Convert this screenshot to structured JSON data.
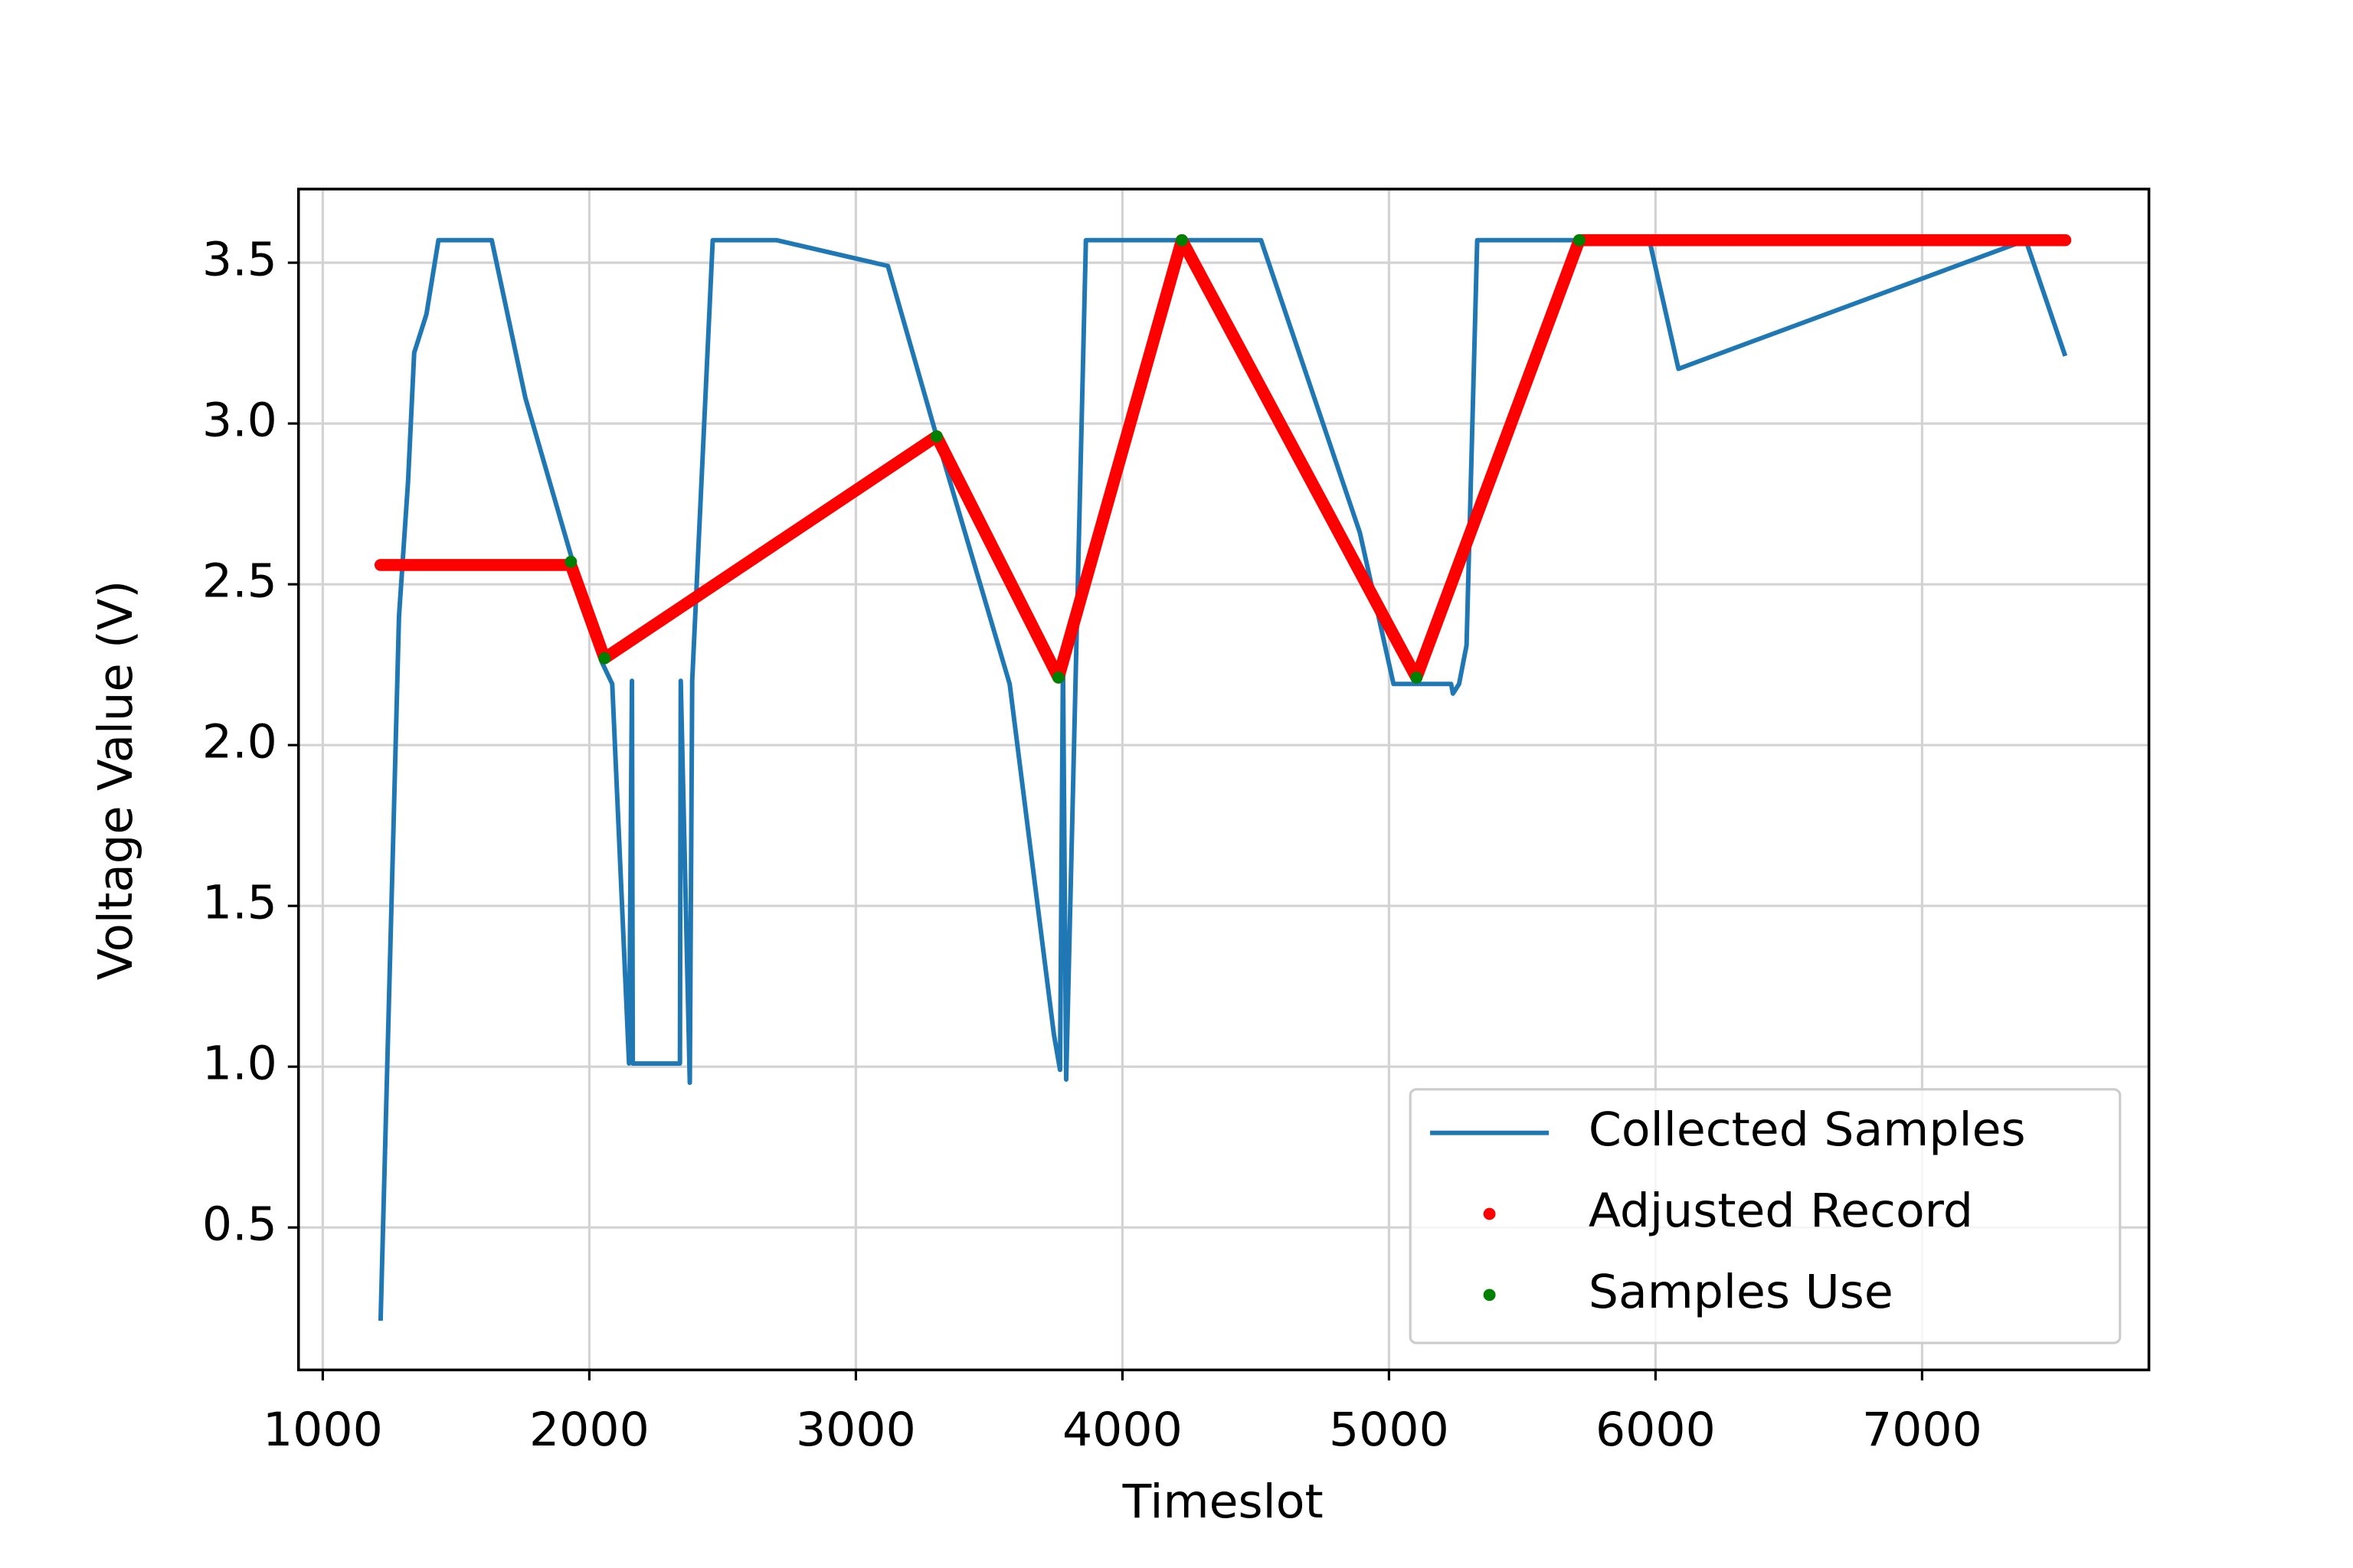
{
  "chart_data": {
    "type": "line",
    "xlabel": "Timeslot",
    "ylabel": "Voltage Value (V)",
    "xlim": [
      909,
      7851
    ],
    "ylim": [
      0.057,
      3.729
    ],
    "xticks": [
      1000,
      2000,
      3000,
      4000,
      5000,
      6000,
      7000
    ],
    "yticks": [
      0.5,
      {
        "value": 1.0,
        "label": "1.0"
      },
      1.5,
      {
        "value": 2.0,
        "label": "2.0"
      },
      2.5,
      {
        "value": 3.0,
        "label": "3.0"
      },
      3.5
    ],
    "grid": true,
    "legend": "lower right",
    "series": [
      {
        "name": "Collected Samples",
        "color": "#1f77b4",
        "mode": "line",
        "x": [
          1217,
          1286,
          1320,
          1343,
          1389,
          1434,
          1634,
          1760,
          1931,
          2046,
          2086,
          2149,
          2160,
          2163,
          2340,
          2343,
          2377,
          2386,
          2463,
          2703,
          3120,
          3303,
          3577,
          3743,
          3766,
          3777,
          3789,
          3863,
          4520,
          4891,
          5017,
          5233,
          5240,
          5263,
          5291,
          5331,
          5977,
          6086,
          7389,
          7537
        ],
        "values": [
          0.21,
          2.4,
          2.82,
          3.22,
          3.34,
          3.57,
          3.57,
          3.08,
          2.59,
          2.26,
          2.19,
          1.01,
          2.2,
          1.01,
          1.01,
          2.2,
          0.95,
          2.2,
          3.57,
          3.57,
          3.49,
          2.96,
          2.19,
          1.1,
          0.99,
          2.26,
          0.96,
          3.57,
          3.57,
          2.66,
          2.19,
          2.19,
          2.16,
          2.19,
          2.31,
          3.57,
          3.57,
          3.17,
          3.57,
          3.21
        ]
      },
      {
        "name": "Adjusted Record",
        "color": "#ff0000",
        "mode": "dense-dots",
        "x": [
          1217,
          1931,
          2057,
          3303,
          3760,
          4223,
          5103,
          5714,
          7537
        ],
        "values": [
          2.56,
          2.56,
          2.27,
          2.96,
          2.21,
          3.57,
          2.21,
          3.57,
          3.57
        ]
      },
      {
        "name": "Samples Use",
        "color": "#008000",
        "mode": "dots",
        "x": [
          1931,
          2057,
          3303,
          3760,
          4223,
          5103,
          5714
        ],
        "values": [
          2.57,
          2.27,
          2.96,
          2.21,
          3.57,
          2.21,
          3.57
        ]
      }
    ]
  }
}
